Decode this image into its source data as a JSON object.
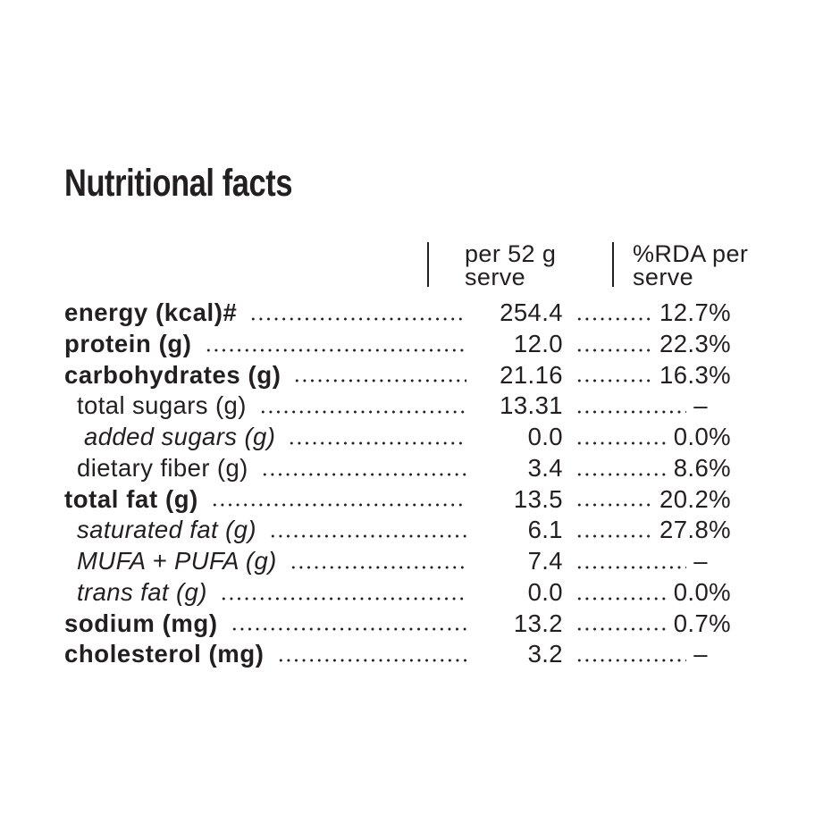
{
  "page": {
    "title": "Nutritional facts"
  },
  "colors": {
    "text": "#231f20",
    "background": "#ffffff"
  },
  "table": {
    "columns": [
      {
        "line1": "per 52 g",
        "line2": "serve"
      },
      {
        "line1": "%RDA per",
        "line2": "serve"
      }
    ],
    "rows": [
      {
        "label": "energy (kcal)#",
        "value": "254.4",
        "rda": "12.7%",
        "emphasis": "bold",
        "indent": 0
      },
      {
        "label": "protein (g)",
        "value": "12.0",
        "rda": "22.3%",
        "emphasis": "bold",
        "indent": 0
      },
      {
        "label": "carbohydrates (g)",
        "value": "21.16",
        "rda": "16.3%",
        "emphasis": "bold",
        "indent": 0
      },
      {
        "label": "total sugars (g)",
        "value": "13.31",
        "rda": "–",
        "emphasis": "regular",
        "indent": 1
      },
      {
        "label": "added sugars (g)",
        "value": "0.0",
        "rda": "0.0%",
        "emphasis": "italic",
        "indent": 2
      },
      {
        "label": "dietary fiber (g)",
        "value": "3.4",
        "rda": "8.6%",
        "emphasis": "regular",
        "indent": 1
      },
      {
        "label": "total fat (g)",
        "value": "13.5",
        "rda": "20.2%",
        "emphasis": "bold",
        "indent": 0
      },
      {
        "label": "saturated fat (g)",
        "value": "6.1",
        "rda": "27.8%",
        "emphasis": "italic",
        "indent": 1
      },
      {
        "label": "MUFA + PUFA (g)",
        "value": "7.4",
        "rda": "–",
        "emphasis": "italic",
        "indent": 1
      },
      {
        "label": "trans fat (g)",
        "value": "0.0",
        "rda": "0.0%",
        "emphasis": "italic",
        "indent": 1
      },
      {
        "label": "sodium (mg)",
        "value": "13.2",
        "rda": "0.7%",
        "emphasis": "bold",
        "indent": 0
      },
      {
        "label": "cholesterol (mg)",
        "value": "3.2",
        "rda": "–",
        "emphasis": "bold",
        "indent": 0
      }
    ]
  }
}
